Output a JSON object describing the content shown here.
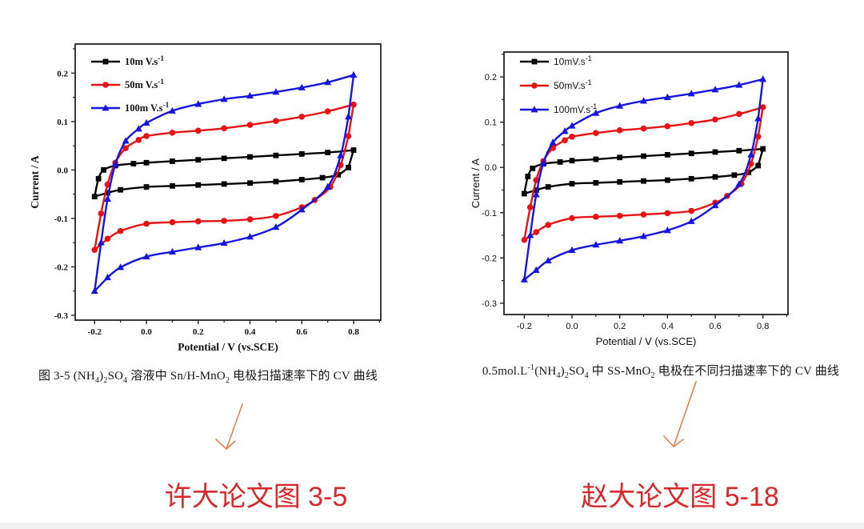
{
  "page": {
    "background": "#ffffff"
  },
  "figures": [
    {
      "caption_segments": [
        {
          "t": "图 3-5 (NH"
        },
        {
          "t": "4",
          "s": "sub"
        },
        {
          "t": ")"
        },
        {
          "t": "2",
          "s": "sub"
        },
        {
          "t": "SO"
        },
        {
          "t": "4",
          "s": "sub"
        },
        {
          "t": " 溶液中 Sn/H-MnO"
        },
        {
          "t": "2",
          "s": "sub"
        },
        {
          "t": " 电极扫描速率下的 CV 曲线"
        }
      ]
    },
    {
      "caption_segments": [
        {
          "t": "0.5mol.L"
        },
        {
          "t": "-1",
          "s": "sup"
        },
        {
          "t": "(NH"
        },
        {
          "t": "4",
          "s": "sub"
        },
        {
          "t": ")"
        },
        {
          "t": "2",
          "s": "sub"
        },
        {
          "t": "SO"
        },
        {
          "t": "4",
          "s": "sub"
        },
        {
          "t": " 中 SS-MnO"
        },
        {
          "t": "2",
          "s": "sub"
        },
        {
          "t": " 电极在不同扫描速率下的 CV 曲线"
        }
      ]
    }
  ],
  "annotations": {
    "notes": [
      {
        "text": "许大论文图 3-5"
      },
      {
        "text": "赵大论文图 5-18"
      }
    ],
    "note_color": "#d7282a",
    "arrow_color": "#e0824e"
  },
  "chart_data": [
    {
      "type": "line",
      "title": "",
      "xlabel": "Potential / V (vs.SCE)",
      "ylabel": "Current / A",
      "xlim": [
        -0.275,
        0.905
      ],
      "ylim": [
        -0.31,
        0.26
      ],
      "grid": false,
      "legend_position": "top-left",
      "xticks": {
        "values": [
          -0.2,
          0.0,
          0.2,
          0.4,
          0.6,
          0.8
        ],
        "labels": [
          "-0.2",
          "0.0",
          "0.2",
          "0.4",
          "0.6",
          "0.8"
        ]
      },
      "yticks": {
        "values": [
          0.2,
          0.1,
          0.0,
          -0.1,
          -0.2,
          -0.3
        ],
        "labels": [
          "0.2",
          "0.1",
          "0.0",
          "-0.1",
          "-0.2",
          "-0.3"
        ]
      },
      "series": [
        {
          "label_segments": [
            {
              "t": "10m V.s"
            },
            {
              "t": "-1",
              "s": "sup"
            }
          ],
          "color": "#000000",
          "marker": "square",
          "upper": [
            [
              -0.2,
              -0.055
            ],
            [
              -0.185,
              -0.018
            ],
            [
              -0.165,
              0.0
            ],
            [
              -0.12,
              0.009
            ],
            [
              -0.05,
              0.013
            ],
            [
              0.0,
              0.015
            ],
            [
              0.1,
              0.018
            ],
            [
              0.2,
              0.021
            ],
            [
              0.3,
              0.024
            ],
            [
              0.4,
              0.027
            ],
            [
              0.5,
              0.03
            ],
            [
              0.6,
              0.033
            ],
            [
              0.7,
              0.036
            ],
            [
              0.8,
              0.041
            ]
          ],
          "lower": [
            [
              0.78,
              0.005
            ],
            [
              0.74,
              -0.01
            ],
            [
              0.68,
              -0.016
            ],
            [
              0.6,
              -0.02
            ],
            [
              0.5,
              -0.024
            ],
            [
              0.4,
              -0.027
            ],
            [
              0.3,
              -0.029
            ],
            [
              0.2,
              -0.031
            ],
            [
              0.1,
              -0.033
            ],
            [
              0.0,
              -0.035
            ],
            [
              -0.1,
              -0.041
            ],
            [
              -0.15,
              -0.047
            ]
          ]
        },
        {
          "label_segments": [
            {
              "t": "50m V.s"
            },
            {
              "t": "-1",
              "s": "sup"
            }
          ],
          "color": "#e81212",
          "marker": "circle",
          "upper": [
            [
              -0.2,
              -0.165
            ],
            [
              -0.175,
              -0.09
            ],
            [
              -0.15,
              -0.03
            ],
            [
              -0.12,
              0.015
            ],
            [
              -0.08,
              0.045
            ],
            [
              -0.03,
              0.062
            ],
            [
              0.0,
              0.07
            ],
            [
              0.1,
              0.077
            ],
            [
              0.2,
              0.081
            ],
            [
              0.3,
              0.086
            ],
            [
              0.4,
              0.093
            ],
            [
              0.5,
              0.101
            ],
            [
              0.6,
              0.11
            ],
            [
              0.7,
              0.121
            ],
            [
              0.8,
              0.135
            ]
          ],
          "lower": [
            [
              0.78,
              0.07
            ],
            [
              0.75,
              0.01
            ],
            [
              0.71,
              -0.035
            ],
            [
              0.65,
              -0.062
            ],
            [
              0.6,
              -0.077
            ],
            [
              0.5,
              -0.095
            ],
            [
              0.4,
              -0.102
            ],
            [
              0.3,
              -0.105
            ],
            [
              0.2,
              -0.106
            ],
            [
              0.1,
              -0.108
            ],
            [
              0.0,
              -0.111
            ],
            [
              -0.1,
              -0.126
            ],
            [
              -0.15,
              -0.142
            ]
          ]
        },
        {
          "label_segments": [
            {
              "t": "100m V.s"
            },
            {
              "t": "-1",
              "s": "sup"
            }
          ],
          "color": "#1515dd",
          "marker": "triangle",
          "upper": [
            [
              -0.2,
              -0.25
            ],
            [
              -0.175,
              -0.15
            ],
            [
              -0.15,
              -0.06
            ],
            [
              -0.12,
              0.012
            ],
            [
              -0.08,
              0.06
            ],
            [
              -0.03,
              0.085
            ],
            [
              0.0,
              0.097
            ],
            [
              0.1,
              0.122
            ],
            [
              0.2,
              0.136
            ],
            [
              0.3,
              0.146
            ],
            [
              0.4,
              0.153
            ],
            [
              0.5,
              0.161
            ],
            [
              0.6,
              0.17
            ],
            [
              0.7,
              0.181
            ],
            [
              0.8,
              0.196
            ]
          ],
          "lower": [
            [
              0.78,
              0.11
            ],
            [
              0.75,
              0.03
            ],
            [
              0.7,
              -0.035
            ],
            [
              0.6,
              -0.082
            ],
            [
              0.5,
              -0.118
            ],
            [
              0.4,
              -0.138
            ],
            [
              0.3,
              -0.151
            ],
            [
              0.2,
              -0.16
            ],
            [
              0.1,
              -0.169
            ],
            [
              0.0,
              -0.179
            ],
            [
              -0.1,
              -0.201
            ],
            [
              -0.15,
              -0.222
            ]
          ]
        }
      ]
    },
    {
      "type": "line",
      "title": "",
      "xlabel": "Potential / V (vs.SCE)",
      "ylabel": "Current / A",
      "xlim": [
        -0.285,
        0.905
      ],
      "ylim": [
        -0.325,
        0.255
      ],
      "grid": false,
      "legend_position": "top-left",
      "xticks": {
        "values": [
          -0.2,
          0.0,
          0.2,
          0.4,
          0.6,
          0.8
        ],
        "labels": [
          "-0.2",
          "0.0",
          "0.2",
          "0.4",
          "0.6",
          "0.8"
        ]
      },
      "yticks": {
        "values": [
          0.2,
          0.1,
          0.0,
          -0.1,
          -0.2,
          -0.3
        ],
        "labels": [
          "0.2",
          "0.1",
          "0.0",
          "-0.1",
          "-0.2",
          "-0.3"
        ]
      },
      "series": [
        {
          "label_segments": [
            {
              "t": "10mV.s"
            },
            {
              "t": "-1",
              "s": "sup"
            }
          ],
          "color": "#000000",
          "marker": "square",
          "upper": [
            [
              -0.2,
              -0.058
            ],
            [
              -0.185,
              -0.02
            ],
            [
              -0.165,
              -0.002
            ],
            [
              -0.12,
              0.008
            ],
            [
              -0.05,
              0.012
            ],
            [
              0.0,
              0.015
            ],
            [
              0.1,
              0.018
            ],
            [
              0.2,
              0.022
            ],
            [
              0.3,
              0.025
            ],
            [
              0.4,
              0.028
            ],
            [
              0.5,
              0.031
            ],
            [
              0.6,
              0.034
            ],
            [
              0.7,
              0.037
            ],
            [
              0.8,
              0.041
            ]
          ],
          "lower": [
            [
              0.78,
              0.004
            ],
            [
              0.74,
              -0.011
            ],
            [
              0.68,
              -0.017
            ],
            [
              0.6,
              -0.021
            ],
            [
              0.5,
              -0.025
            ],
            [
              0.4,
              -0.028
            ],
            [
              0.3,
              -0.03
            ],
            [
              0.2,
              -0.032
            ],
            [
              0.1,
              -0.034
            ],
            [
              0.0,
              -0.036
            ],
            [
              -0.1,
              -0.043
            ],
            [
              -0.15,
              -0.05
            ]
          ]
        },
        {
          "label_segments": [
            {
              "t": "50mV.s"
            },
            {
              "t": "-1",
              "s": "sup"
            }
          ],
          "color": "#e81212",
          "marker": "circle",
          "upper": [
            [
              -0.2,
              -0.16
            ],
            [
              -0.175,
              -0.088
            ],
            [
              -0.15,
              -0.028
            ],
            [
              -0.12,
              0.014
            ],
            [
              -0.08,
              0.043
            ],
            [
              -0.03,
              0.06
            ],
            [
              0.0,
              0.068
            ],
            [
              0.1,
              0.076
            ],
            [
              0.2,
              0.082
            ],
            [
              0.3,
              0.086
            ],
            [
              0.4,
              0.091
            ],
            [
              0.5,
              0.098
            ],
            [
              0.6,
              0.106
            ],
            [
              0.7,
              0.118
            ],
            [
              0.8,
              0.133
            ]
          ],
          "lower": [
            [
              0.78,
              0.068
            ],
            [
              0.75,
              0.008
            ],
            [
              0.71,
              -0.036
            ],
            [
              0.65,
              -0.063
            ],
            [
              0.6,
              -0.078
            ],
            [
              0.5,
              -0.096
            ],
            [
              0.4,
              -0.101
            ],
            [
              0.3,
              -0.104
            ],
            [
              0.2,
              -0.107
            ],
            [
              0.1,
              -0.109
            ],
            [
              0.0,
              -0.112
            ],
            [
              -0.1,
              -0.127
            ],
            [
              -0.15,
              -0.143
            ]
          ]
        },
        {
          "label_segments": [
            {
              "t": "100mV.s"
            },
            {
              "t": "-1",
              "s": "sup"
            }
          ],
          "color": "#1515dd",
          "marker": "triangle",
          "upper": [
            [
              -0.2,
              -0.248
            ],
            [
              -0.175,
              -0.15
            ],
            [
              -0.15,
              -0.06
            ],
            [
              -0.12,
              0.01
            ],
            [
              -0.08,
              0.055
            ],
            [
              -0.03,
              0.08
            ],
            [
              0.0,
              0.092
            ],
            [
              0.1,
              0.12
            ],
            [
              0.2,
              0.136
            ],
            [
              0.3,
              0.147
            ],
            [
              0.4,
              0.155
            ],
            [
              0.5,
              0.163
            ],
            [
              0.6,
              0.172
            ],
            [
              0.7,
              0.182
            ],
            [
              0.8,
              0.195
            ]
          ],
          "lower": [
            [
              0.78,
              0.108
            ],
            [
              0.75,
              0.028
            ],
            [
              0.7,
              -0.037
            ],
            [
              0.6,
              -0.084
            ],
            [
              0.5,
              -0.119
            ],
            [
              0.4,
              -0.139
            ],
            [
              0.3,
              -0.152
            ],
            [
              0.2,
              -0.162
            ],
            [
              0.1,
              -0.171
            ],
            [
              0.0,
              -0.183
            ],
            [
              -0.1,
              -0.206
            ],
            [
              -0.15,
              -0.227
            ]
          ]
        }
      ]
    }
  ]
}
